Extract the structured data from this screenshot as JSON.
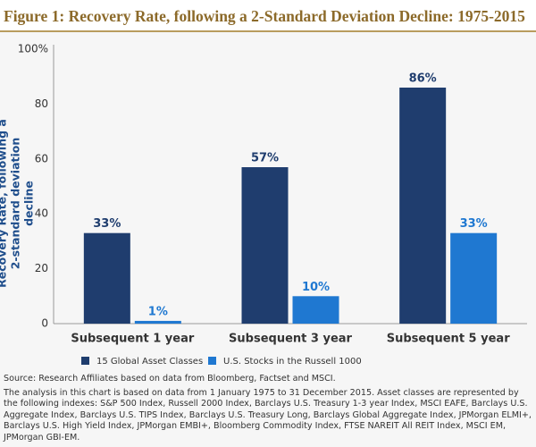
{
  "chart_data": {
    "type": "bar",
    "title": "Figure 1: Recovery Rate, following a 2-Standard Deviation Decline: 1975-2015",
    "y_label": "Recovery Rate, following a 2-standard deviation decline",
    "categories": [
      "Subsequent 1 year",
      "Subsequent 3 year",
      "Subsequent 5 year"
    ],
    "series": [
      {
        "name": "15 Global Asset Classes",
        "color": "#1f3d6e",
        "values": [
          33,
          57,
          86
        ],
        "value_labels": [
          "33%",
          "57%",
          "86%"
        ]
      },
      {
        "name": "U.S. Stocks in the Russell 1000",
        "color": "#1f78d1",
        "values": [
          1,
          10,
          33
        ],
        "value_labels": [
          "1%",
          "10%",
          "33%"
        ]
      }
    ],
    "ylim": [
      0,
      100
    ],
    "yticks": [
      0,
      20,
      40,
      60,
      80,
      {
        "value": 100,
        "label": "100%"
      }
    ],
    "grid": false,
    "source": "Source: Research Affiliates based on data from Bloomberg, Factset and MSCI.",
    "note": "The analysis in this chart is based on data from 1 January 1975 to 31 December 2015. Asset classes are represented by the following indexes: S&P 500 Index, Russell 2000 Index, Barclays U.S. Treasury 1-3 year Index, MSCI EAFE, Barclays U.S. Aggregate Index, Barclays U.S. TIPS Index, Barclays U.S. Treasury Long, Barclays Global Aggregate Index, JPMorgan ELMI+, Barclays U.S. High Yield Index, JPMorgan EMBI+, Bloomberg Commodity Index, FTSE NAREIT All REIT Index, MSCI EM, JPMorgan GBI-EM."
  }
}
